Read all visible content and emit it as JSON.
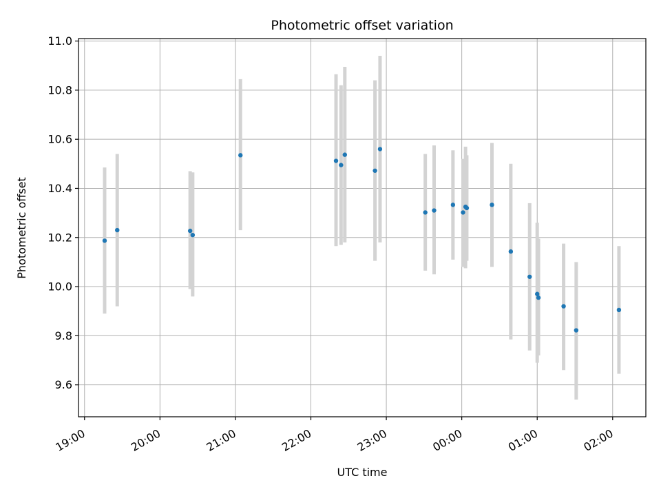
{
  "chart_data": {
    "type": "scatter",
    "title": "Photometric offset variation",
    "xlabel": "UTC time",
    "ylabel": "Photometric offset",
    "x_tick_labels": [
      "19:00",
      "20:00",
      "21:00",
      "22:00",
      "23:00",
      "00:00",
      "01:00",
      "02:00"
    ],
    "x_ticks_hours": [
      19,
      20,
      21,
      22,
      23,
      24,
      25,
      26
    ],
    "xlim_hours": [
      18.92,
      26.44
    ],
    "y_ticks": [
      9.6,
      9.8,
      10.0,
      10.2,
      10.4,
      10.6,
      10.8,
      11.0
    ],
    "y_tick_labels": [
      "9.6",
      "9.8",
      "10.0",
      "10.2",
      "10.4",
      "10.6",
      "10.8",
      "11.0"
    ],
    "ylim": [
      9.47,
      11.01
    ],
    "grid": true,
    "colors": {
      "points": "#1f77b4",
      "errorbars": "#d3d3d3",
      "grid": "#b0b0b0"
    },
    "points": [
      {
        "time": "19:16",
        "y": 10.187,
        "low": 9.89,
        "high": 10.485
      },
      {
        "time": "19:26",
        "y": 10.23,
        "low": 9.92,
        "high": 10.54
      },
      {
        "time": "20:24",
        "y": 10.227,
        "low": 9.99,
        "high": 10.47
      },
      {
        "time": "20:26",
        "y": 10.21,
        "low": 9.96,
        "high": 10.465
      },
      {
        "time": "21:04",
        "y": 10.535,
        "low": 10.23,
        "high": 10.845
      },
      {
        "time": "22:20",
        "y": 10.512,
        "low": 10.165,
        "high": 10.865
      },
      {
        "time": "22:24",
        "y": 10.495,
        "low": 10.17,
        "high": 10.82
      },
      {
        "time": "22:27",
        "y": 10.537,
        "low": 10.18,
        "high": 10.895
      },
      {
        "time": "22:51",
        "y": 10.472,
        "low": 10.105,
        "high": 10.84
      },
      {
        "time": "22:55",
        "y": 10.56,
        "low": 10.18,
        "high": 10.94
      },
      {
        "time": "23:31",
        "y": 10.302,
        "low": 10.065,
        "high": 10.54
      },
      {
        "time": "23:38",
        "y": 10.31,
        "low": 10.05,
        "high": 10.575
      },
      {
        "time": "23:53",
        "y": 10.333,
        "low": 10.11,
        "high": 10.555
      },
      {
        "time": "00:01",
        "y": 10.302,
        "low": 10.08,
        "high": 10.52
      },
      {
        "time": "00:03",
        "y": 10.325,
        "low": 10.075,
        "high": 10.57
      },
      {
        "time": "00:04",
        "y": 10.32,
        "low": 10.105,
        "high": 10.535
      },
      {
        "time": "00:24",
        "y": 10.333,
        "low": 10.08,
        "high": 10.585
      },
      {
        "time": "00:39",
        "y": 10.143,
        "low": 9.785,
        "high": 10.5
      },
      {
        "time": "00:54",
        "y": 10.04,
        "low": 9.74,
        "high": 10.34
      },
      {
        "time": "01:00",
        "y": 9.97,
        "low": 9.69,
        "high": 10.26
      },
      {
        "time": "01:01",
        "y": 9.955,
        "low": 9.72,
        "high": 10.195
      },
      {
        "time": "01:21",
        "y": 9.92,
        "low": 9.66,
        "high": 10.175
      },
      {
        "time": "01:31",
        "y": 9.822,
        "low": 9.54,
        "high": 10.1
      },
      {
        "time": "02:05",
        "y": 9.905,
        "low": 9.645,
        "high": 10.165
      }
    ]
  }
}
